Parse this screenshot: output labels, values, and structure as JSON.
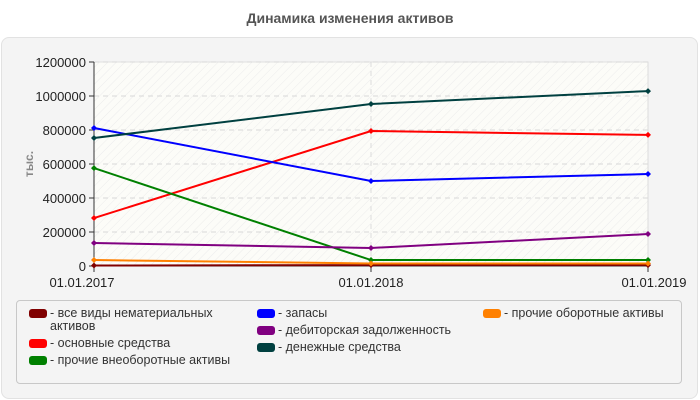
{
  "title": "Динамика изменения активов",
  "chart_data": {
    "type": "line",
    "title": "Динамика изменения активов",
    "xlabel": "",
    "ylabel": "тыс.",
    "x": [
      "01.01.2017",
      "01.01.2018",
      "01.01.2019"
    ],
    "ylim": [
      0,
      1200000
    ],
    "yticks": [
      0,
      200000,
      400000,
      600000,
      800000,
      1000000,
      1200000
    ],
    "ytick_labels": [
      "0",
      "200000",
      "400000",
      "600000",
      "800000",
      "1000000",
      "1200000"
    ],
    "grid": true,
    "legend_position": "bottom",
    "series": [
      {
        "name": "- все виды нематериальных активов",
        "color": "#800000",
        "values": [
          3000,
          5000,
          5000
        ]
      },
      {
        "name": "- основные средства",
        "color": "#ff0000",
        "values": [
          282000,
          794000,
          771000
        ]
      },
      {
        "name": "- прочие внеоборотные активы",
        "color": "#008000",
        "values": [
          576000,
          35000,
          35000
        ]
      },
      {
        "name": "- запасы",
        "color": "#0000ff",
        "values": [
          812000,
          500000,
          541000
        ]
      },
      {
        "name": "- дебиторская задолженность",
        "color": "#800080",
        "values": [
          135000,
          106000,
          188000
        ]
      },
      {
        "name": "- денежные средства",
        "color": "#004040",
        "values": [
          753000,
          953000,
          1029000
        ]
      },
      {
        "name": "- прочие оборотные активы",
        "color": "#ff8000",
        "values": [
          35000,
          15000,
          15000
        ]
      }
    ]
  },
  "legend": {
    "columns": [
      [
        0,
        1,
        2
      ],
      [
        3,
        4,
        5
      ],
      [
        6
      ]
    ]
  }
}
